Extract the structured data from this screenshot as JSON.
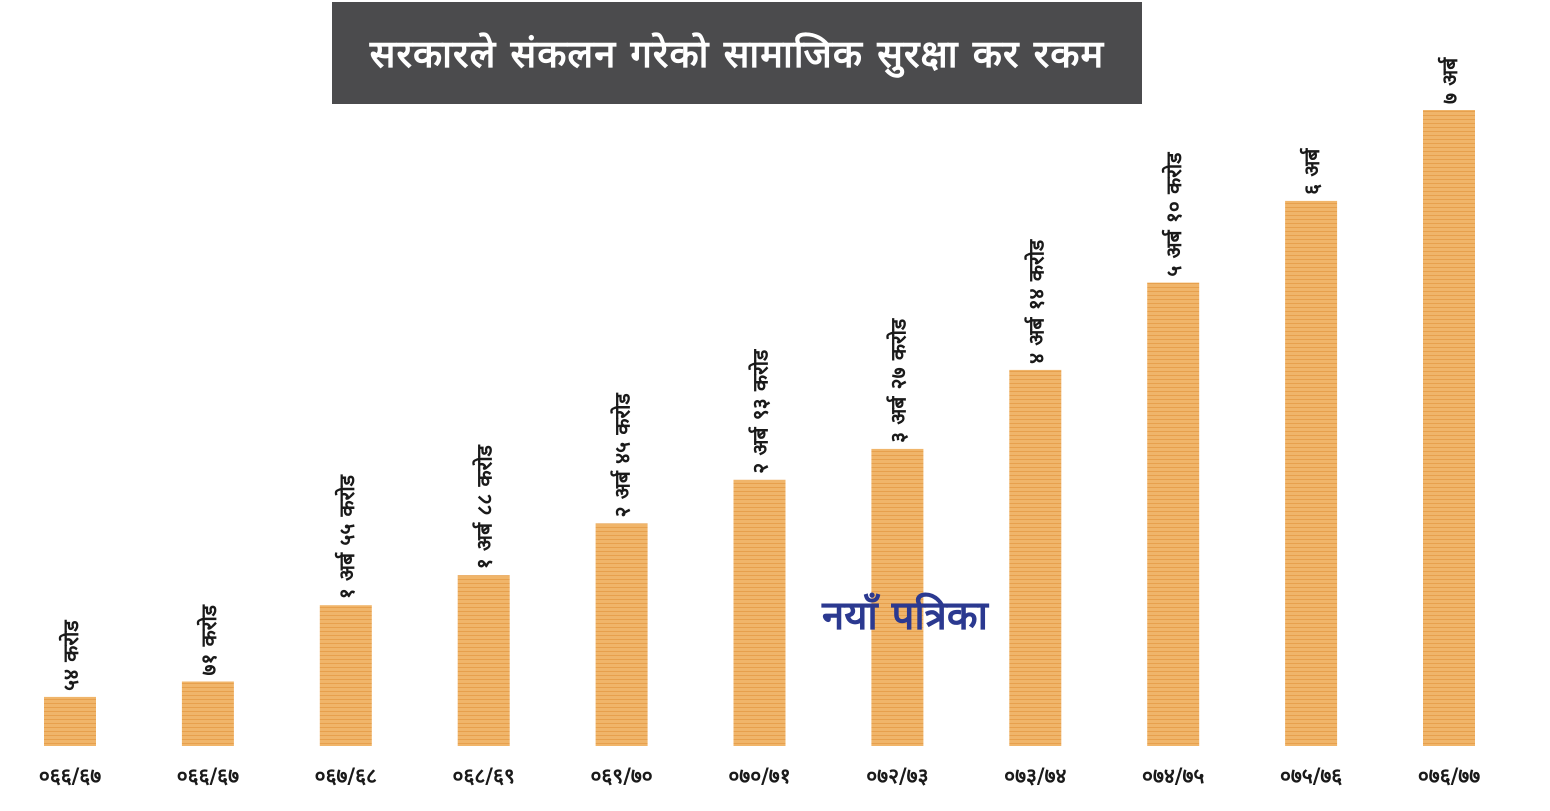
{
  "watermark": "नयाँ पत्रिका",
  "colors": {
    "bar": "#f0b56a",
    "bar_stripe": "#e7a04d",
    "title_bg": "#4b4b4d",
    "watermark": "#2b3990"
  },
  "chart_data": {
    "type": "bar",
    "title": "सरकारले संकलन गरेको सामाजिक सुरक्षा कर रकम",
    "xlabel": "",
    "ylabel": "",
    "grid": false,
    "unit": "करोड",
    "categories": [
      "०६६/६७",
      "०६६/६७",
      "०६७/६८",
      "०६८/६९",
      "०६९/७०",
      "०७०/७१",
      "०७२/७३",
      "०७३/७४",
      "०७४/७५",
      "०७५/७६",
      "०७६/७७"
    ],
    "values": [
      54,
      71,
      155,
      188,
      245,
      293,
      327,
      414,
      510,
      600,
      700
    ],
    "data_labels": [
      "५४ करोड",
      "७१ करोड",
      "१ अर्ब ५५ करोड",
      "१ अर्ब ८८ करोड",
      "२ अर्ब ४५ करोड",
      "२ अर्ब ९३ करोड",
      "३ अर्ब २७ करोड",
      "४ अर्ब १४ करोड",
      "५ अर्ब १० करोड",
      "६ अर्ब",
      "७ अर्ब"
    ],
    "ylim": [
      0,
      700
    ]
  }
}
